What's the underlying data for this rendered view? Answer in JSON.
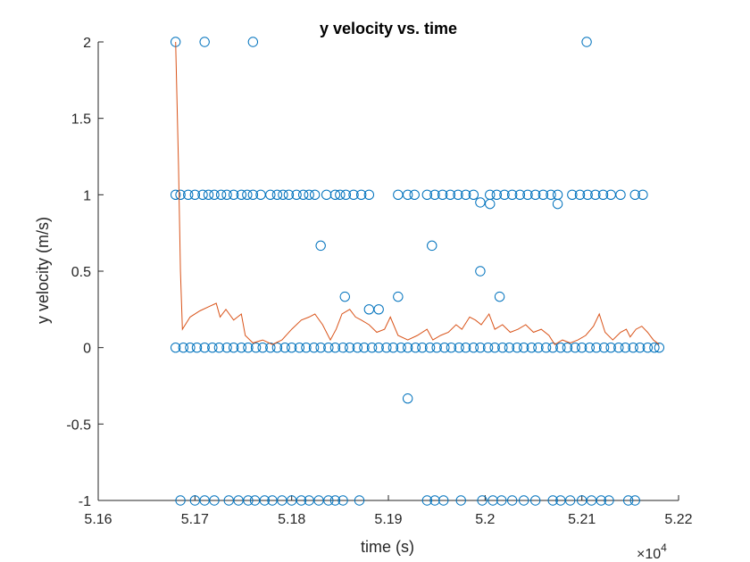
{
  "chart_data": {
    "type": "scatter",
    "title": "y velocity vs. time",
    "xlabel": "time (s)",
    "ylabel": "y velocity (m/s)",
    "xlim": [
      51600,
      52200
    ],
    "ylim": [
      -1,
      2
    ],
    "x_exponent_label": "×10",
    "x_exponent_power": "4",
    "x_ticks": [
      51600,
      51700,
      51800,
      51900,
      52000,
      52100,
      52200
    ],
    "x_tick_labels": [
      "5.16",
      "5.17",
      "5.18",
      "5.19",
      "5.2",
      "5.21",
      "5.22"
    ],
    "y_ticks": [
      -1,
      -0.5,
      0,
      0.5,
      1,
      1.5,
      2
    ],
    "y_tick_labels": [
      "-1",
      "-0.5",
      "0",
      "0.5",
      "1",
      "1.5",
      "2"
    ],
    "grid": false,
    "colors": {
      "markers": "#0072BD",
      "line": "#D95319",
      "axes": "#262626"
    },
    "series": [
      {
        "type": "scatter",
        "points": [
          [
            51680,
            2
          ],
          [
            51710,
            2
          ],
          [
            51760,
            2
          ],
          [
            52105,
            2
          ],
          [
            51680,
            1
          ],
          [
            51685,
            1
          ],
          [
            51693,
            1
          ],
          [
            51700,
            1
          ],
          [
            51708,
            1
          ],
          [
            51714,
            1
          ],
          [
            51720,
            1
          ],
          [
            51727,
            1
          ],
          [
            51733,
            1
          ],
          [
            51740,
            1
          ],
          [
            51748,
            1
          ],
          [
            51754,
            1
          ],
          [
            51760,
            1
          ],
          [
            51768,
            1
          ],
          [
            51778,
            1
          ],
          [
            51785,
            1
          ],
          [
            51791,
            1
          ],
          [
            51797,
            1
          ],
          [
            51805,
            1
          ],
          [
            51812,
            1
          ],
          [
            51818,
            1
          ],
          [
            51824,
            1
          ],
          [
            51836,
            1
          ],
          [
            51845,
            1
          ],
          [
            51850,
            1
          ],
          [
            51856,
            1
          ],
          [
            51864,
            1
          ],
          [
            51872,
            1
          ],
          [
            51880,
            1
          ],
          [
            51910,
            1
          ],
          [
            51920,
            1
          ],
          [
            51927,
            1
          ],
          [
            51940,
            1
          ],
          [
            51948,
            1
          ],
          [
            51956,
            1
          ],
          [
            51964,
            1
          ],
          [
            51972,
            1
          ],
          [
            51980,
            1
          ],
          [
            51988,
            1
          ],
          [
            52005,
            1
          ],
          [
            52012,
            1
          ],
          [
            52020,
            1
          ],
          [
            52028,
            1
          ],
          [
            52036,
            1
          ],
          [
            52044,
            1
          ],
          [
            52052,
            1
          ],
          [
            52060,
            1
          ],
          [
            52068,
            1
          ],
          [
            52075,
            1
          ],
          [
            52090,
            1
          ],
          [
            52098,
            1
          ],
          [
            52106,
            1
          ],
          [
            52114,
            1
          ],
          [
            52122,
            1
          ],
          [
            52130,
            1
          ],
          [
            52140,
            1
          ],
          [
            52155,
            1
          ],
          [
            52163,
            1
          ],
          [
            51995,
            0.95
          ],
          [
            52005,
            0.94
          ],
          [
            52075,
            0.94
          ],
          [
            51830,
            0.667
          ],
          [
            51945,
            0.667
          ],
          [
            51995,
            0.5
          ],
          [
            51855,
            0.333
          ],
          [
            51910,
            0.333
          ],
          [
            52015,
            0.333
          ],
          [
            51880,
            0.25
          ],
          [
            51890,
            0.25
          ],
          [
            51680,
            0
          ],
          [
            51688,
            0
          ],
          [
            51695,
            0
          ],
          [
            51702,
            0
          ],
          [
            51710,
            0
          ],
          [
            51718,
            0
          ],
          [
            51725,
            0
          ],
          [
            51733,
            0
          ],
          [
            51740,
            0
          ],
          [
            51748,
            0
          ],
          [
            51755,
            0
          ],
          [
            51763,
            0
          ],
          [
            51770,
            0
          ],
          [
            51778,
            0
          ],
          [
            51785,
            0
          ],
          [
            51793,
            0
          ],
          [
            51800,
            0
          ],
          [
            51808,
            0
          ],
          [
            51815,
            0
          ],
          [
            51823,
            0
          ],
          [
            51830,
            0
          ],
          [
            51838,
            0
          ],
          [
            51845,
            0
          ],
          [
            51853,
            0
          ],
          [
            51860,
            0
          ],
          [
            51868,
            0
          ],
          [
            51875,
            0
          ],
          [
            51883,
            0
          ],
          [
            51890,
            0
          ],
          [
            51898,
            0
          ],
          [
            51905,
            0
          ],
          [
            51913,
            0
          ],
          [
            51920,
            0
          ],
          [
            51928,
            0
          ],
          [
            51935,
            0
          ],
          [
            51943,
            0
          ],
          [
            51950,
            0
          ],
          [
            51958,
            0
          ],
          [
            51965,
            0
          ],
          [
            51973,
            0
          ],
          [
            51980,
            0
          ],
          [
            51988,
            0
          ],
          [
            51995,
            0
          ],
          [
            52003,
            0
          ],
          [
            52010,
            0
          ],
          [
            52018,
            0
          ],
          [
            52025,
            0
          ],
          [
            52033,
            0
          ],
          [
            52040,
            0
          ],
          [
            52048,
            0
          ],
          [
            52055,
            0
          ],
          [
            52063,
            0
          ],
          [
            52070,
            0
          ],
          [
            52078,
            0
          ],
          [
            52085,
            0
          ],
          [
            52093,
            0
          ],
          [
            52100,
            0
          ],
          [
            52108,
            0
          ],
          [
            52115,
            0
          ],
          [
            52123,
            0
          ],
          [
            52130,
            0
          ],
          [
            52138,
            0
          ],
          [
            52145,
            0
          ],
          [
            52153,
            0
          ],
          [
            52160,
            0
          ],
          [
            52168,
            0
          ],
          [
            52175,
            0
          ],
          [
            52180,
            0
          ],
          [
            51920,
            -0.333
          ],
          [
            51685,
            -1
          ],
          [
            51700,
            -1
          ],
          [
            51710,
            -1
          ],
          [
            51720,
            -1
          ],
          [
            51735,
            -1
          ],
          [
            51745,
            -1
          ],
          [
            51755,
            -1
          ],
          [
            51762,
            -1
          ],
          [
            51772,
            -1
          ],
          [
            51780,
            -1
          ],
          [
            51790,
            -1
          ],
          [
            51800,
            -1
          ],
          [
            51810,
            -1
          ],
          [
            51818,
            -1
          ],
          [
            51828,
            -1
          ],
          [
            51838,
            -1
          ],
          [
            51845,
            -1
          ],
          [
            51853,
            -1
          ],
          [
            51870,
            -1
          ],
          [
            51940,
            -1
          ],
          [
            51948,
            -1
          ],
          [
            51957,
            -1
          ],
          [
            51975,
            -1
          ],
          [
            51997,
            -1
          ],
          [
            52008,
            -1
          ],
          [
            52017,
            -1
          ],
          [
            52028,
            -1
          ],
          [
            52040,
            -1
          ],
          [
            52052,
            -1
          ],
          [
            52070,
            -1
          ],
          [
            52078,
            -1
          ],
          [
            52088,
            -1
          ],
          [
            52100,
            -1
          ],
          [
            52110,
            -1
          ],
          [
            52120,
            -1
          ],
          [
            52128,
            -1
          ],
          [
            52148,
            -1
          ],
          [
            52155,
            -1
          ]
        ]
      },
      {
        "type": "line",
        "points": [
          [
            51680,
            2
          ],
          [
            51683,
            1.2
          ],
          [
            51685,
            0.5
          ],
          [
            51687,
            0.12
          ],
          [
            51695,
            0.2
          ],
          [
            51705,
            0.24
          ],
          [
            51715,
            0.27
          ],
          [
            51722,
            0.29
          ],
          [
            51726,
            0.2
          ],
          [
            51732,
            0.25
          ],
          [
            51740,
            0.18
          ],
          [
            51748,
            0.22
          ],
          [
            51752,
            0.08
          ],
          [
            51760,
            0.03
          ],
          [
            51770,
            0.05
          ],
          [
            51780,
            0.02
          ],
          [
            51790,
            0.05
          ],
          [
            51800,
            0.12
          ],
          [
            51810,
            0.18
          ],
          [
            51818,
            0.2
          ],
          [
            51824,
            0.22
          ],
          [
            51832,
            0.15
          ],
          [
            51840,
            0.05
          ],
          [
            51846,
            0.12
          ],
          [
            51852,
            0.22
          ],
          [
            51860,
            0.25
          ],
          [
            51866,
            0.2
          ],
          [
            51872,
            0.18
          ],
          [
            51880,
            0.15
          ],
          [
            51888,
            0.1
          ],
          [
            51896,
            0.12
          ],
          [
            51902,
            0.2
          ],
          [
            51910,
            0.08
          ],
          [
            51920,
            0.05
          ],
          [
            51930,
            0.08
          ],
          [
            51940,
            0.12
          ],
          [
            51946,
            0.05
          ],
          [
            51954,
            0.08
          ],
          [
            51962,
            0.1
          ],
          [
            51970,
            0.15
          ],
          [
            51976,
            0.12
          ],
          [
            51984,
            0.2
          ],
          [
            51990,
            0.18
          ],
          [
            51996,
            0.15
          ],
          [
            52004,
            0.22
          ],
          [
            52010,
            0.12
          ],
          [
            52018,
            0.15
          ],
          [
            52026,
            0.1
          ],
          [
            52034,
            0.12
          ],
          [
            52042,
            0.15
          ],
          [
            52050,
            0.1
          ],
          [
            52058,
            0.12
          ],
          [
            52066,
            0.08
          ],
          [
            52072,
            0.02
          ],
          [
            52080,
            0.05
          ],
          [
            52088,
            0.03
          ],
          [
            52096,
            0.05
          ],
          [
            52104,
            0.08
          ],
          [
            52112,
            0.14
          ],
          [
            52118,
            0.22
          ],
          [
            52124,
            0.1
          ],
          [
            52132,
            0.05
          ],
          [
            52140,
            0.1
          ],
          [
            52146,
            0.12
          ],
          [
            52150,
            0.07
          ],
          [
            52156,
            0.12
          ],
          [
            52162,
            0.14
          ],
          [
            52168,
            0.1
          ],
          [
            52174,
            0.05
          ],
          [
            52180,
            0.02
          ]
        ]
      }
    ]
  }
}
